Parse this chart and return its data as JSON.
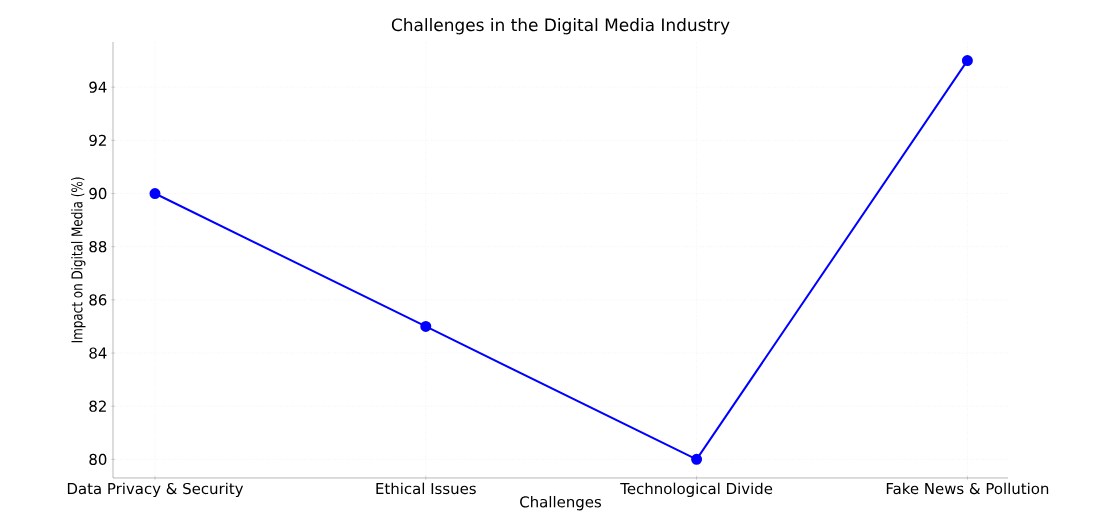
{
  "chart_data": {
    "type": "line",
    "title": "Challenges in the Digital Media Industry",
    "xlabel": "Challenges",
    "ylabel": "Impact on Digital Media (%)",
    "categories": [
      "Data Privacy & Security",
      "Ethical Issues",
      "Technological Divide",
      "Fake News & Pollution"
    ],
    "values": [
      90,
      85,
      80,
      95
    ],
    "color": "#0000ff",
    "marker": "circle",
    "line_style": "solid",
    "ylim": [
      79.3,
      95.7
    ],
    "yticks": [
      80,
      82,
      84,
      86,
      88,
      90,
      92,
      94
    ],
    "grid": true
  }
}
